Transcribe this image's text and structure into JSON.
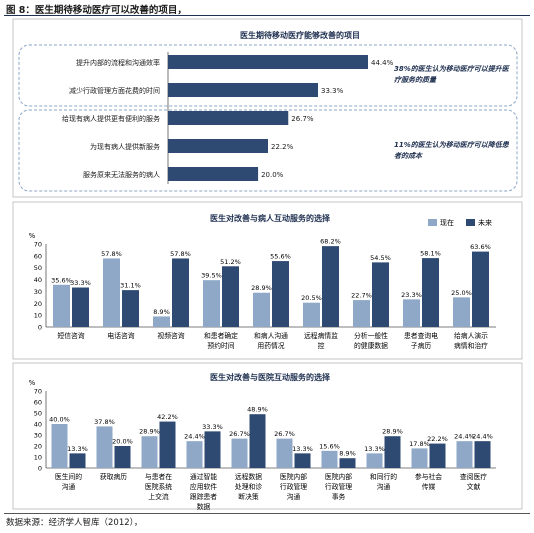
{
  "figure": {
    "title": "图 8：医生期待移动医疗可以改善的项目，",
    "source": "数据来源：经济学人智库（2012），"
  },
  "colors": {
    "navy": "#1f3050",
    "dark_bar": "#2e4a73",
    "light_bar": "#8fa8c8",
    "callout_border": "#6a8fb5",
    "dashed_border": "#8aa6c6"
  },
  "chart_data": [
    {
      "type": "bar",
      "orientation": "horizontal",
      "title": "医生期待移动医疗能够改善的项目",
      "categories": [
        "提升内部的流程和沟通效率",
        "减少行政管理方面花费的时间",
        "给现有病人提供更有便利的服务",
        "为现有病人提供新服务",
        "服务原来无法服务的病人"
      ],
      "values": [
        44.4,
        33.3,
        26.7,
        22.2,
        20.0
      ],
      "value_labels": [
        "44.4%",
        "33.3%",
        "26.7%",
        "22.2%",
        "20.0%"
      ],
      "xlim": [
        0,
        50
      ],
      "callouts": [
        "38%的医生认为移动医疗可以提升医疗服务的质量",
        "11%的医生认为移动医疗可以降低患者的成本"
      ]
    },
    {
      "type": "bar",
      "title": "医生对改善与病人互动服务的选择",
      "ylabel": "%",
      "ylim": [
        0,
        70
      ],
      "yticks": [
        "0",
        "10",
        "20",
        "30",
        "40",
        "50",
        "60",
        "70"
      ],
      "legend": "top-right",
      "categories": [
        "短信咨询",
        "电话咨询",
        "视频咨询",
        "和患者确定预约时间",
        "和病人沟通用药情况",
        "远程病情监控",
        "分析一般性的健康数据",
        "患者查询电子病历",
        "给病人演示病情和治疗"
      ],
      "series": [
        {
          "name": "现在",
          "values": [
            35.6,
            57.8,
            8.9,
            39.5,
            28.9,
            20.5,
            22.7,
            23.3,
            25.0
          ],
          "labels": [
            "35.6%",
            "57.8%",
            "8.9%",
            "39.5%",
            "28.9%",
            "20.5%",
            "22.7%",
            "23.3%",
            "25.0%"
          ]
        },
        {
          "name": "未来",
          "values": [
            33.3,
            31.1,
            57.8,
            51.2,
            55.6,
            68.2,
            54.5,
            58.1,
            63.6
          ],
          "labels": [
            "33.3%",
            "31.1%",
            "57.8%",
            "51.2%",
            "55.6%",
            "68.2%",
            "54.5%",
            "58.1%",
            "63.6%"
          ]
        }
      ]
    },
    {
      "type": "bar",
      "title": "医生对改善与医院互动服务的选择",
      "ylabel": "%",
      "ylim": [
        0,
        70
      ],
      "yticks": [
        "0",
        "10",
        "20",
        "30",
        "40",
        "50",
        "60",
        "70"
      ],
      "categories": [
        "医生间的沟通",
        "获取病历",
        "与患者在医院系统上交流",
        "通过智能应用软件跟踪患者数据",
        "远程数据处理和诊断决策",
        "医院内部行政管理沟通",
        "医院内部行政管理事务",
        "和同行的沟通",
        "参与社会传媒",
        "查阅医疗文献"
      ],
      "series": [
        {
          "name": "现在",
          "values": [
            40.0,
            37.8,
            28.9,
            24.4,
            26.7,
            26.7,
            15.6,
            13.3,
            17.8,
            24.4
          ],
          "labels": [
            "40.0%",
            "37.8%",
            "28.9%",
            "24.4%",
            "26.7%",
            "26.7%",
            "15.6%",
            "13.3%",
            "17.8%",
            "24.4%"
          ]
        },
        {
          "name": "未来",
          "values": [
            13.3,
            20.0,
            42.2,
            33.3,
            48.9,
            13.3,
            8.9,
            28.9,
            22.2,
            24.4
          ],
          "labels": [
            "13.3%",
            "20.0%",
            "42.2%",
            "33.3%",
            "48.9%",
            "13.3%",
            "8.9%",
            "28.9%",
            "22.2%",
            "24.4%"
          ]
        }
      ]
    }
  ]
}
